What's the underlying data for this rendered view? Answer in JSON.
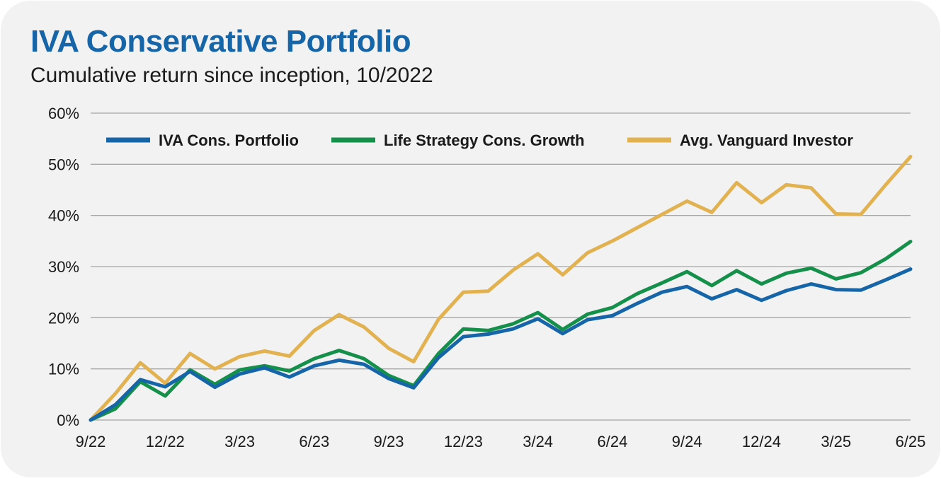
{
  "header": {
    "title": "IVA Conservative Portfolio",
    "subtitle": "Cumulative return since inception, 10/2022"
  },
  "colors": {
    "background": "#f2f2f2",
    "title": "#1565a8",
    "gridline": "#a6a6a6",
    "iva": "#1565a8",
    "life_strategy": "#14904a",
    "avg_vanguard": "#e2b150"
  },
  "chart_data": {
    "type": "line",
    "title": "IVA Conservative Portfolio",
    "subtitle": "Cumulative return since inception, 10/2022",
    "xlabel": "",
    "ylabel": "",
    "ylim": [
      0,
      60
    ],
    "yticks": [
      0,
      10,
      20,
      30,
      40,
      50,
      60
    ],
    "ytick_labels": [
      "0%",
      "10%",
      "20%",
      "30%",
      "40%",
      "50%",
      "60%"
    ],
    "grid": true,
    "legend_position": "top",
    "x": [
      "9/22",
      "10/22",
      "11/22",
      "12/22",
      "1/23",
      "2/23",
      "3/23",
      "4/23",
      "5/23",
      "6/23",
      "7/23",
      "8/23",
      "9/23",
      "10/23",
      "11/23",
      "12/23",
      "1/24",
      "2/24",
      "3/24",
      "4/24",
      "5/24",
      "6/24",
      "7/24",
      "8/24",
      "9/24",
      "10/24",
      "11/24",
      "12/24",
      "1/25",
      "2/25",
      "3/25",
      "4/25",
      "5/25",
      "6/25"
    ],
    "x_tick_labels": [
      {
        "index": 0,
        "label": "9/22"
      },
      {
        "index": 3,
        "label": "12/22"
      },
      {
        "index": 6,
        "label": "3/23"
      },
      {
        "index": 9,
        "label": "6/23"
      },
      {
        "index": 12,
        "label": "9/23"
      },
      {
        "index": 15,
        "label": "12/23"
      },
      {
        "index": 18,
        "label": "3/24"
      },
      {
        "index": 21,
        "label": "6/24"
      },
      {
        "index": 24,
        "label": "9/24"
      },
      {
        "index": 27,
        "label": "12/24"
      },
      {
        "index": 30,
        "label": "3/25"
      },
      {
        "index": 33,
        "label": "6/25"
      }
    ],
    "series": [
      {
        "name": "Avg. Vanguard Investor",
        "key": "avg_vanguard",
        "color": "#e2b150",
        "values": [
          0,
          5.2,
          11.2,
          7.2,
          13.0,
          10.0,
          12.4,
          13.5,
          12.5,
          17.5,
          20.6,
          18.2,
          14.0,
          11.4,
          19.7,
          25.0,
          25.2,
          29.3,
          32.5,
          28.4,
          32.7,
          35.0,
          37.6,
          40.2,
          42.8,
          40.6,
          46.4,
          42.5,
          46.0,
          45.4,
          40.3,
          40.2,
          46.0,
          51.5
        ]
      },
      {
        "name": "Life Strategy Cons. Growth",
        "key": "life_strategy",
        "color": "#14904a",
        "values": [
          0,
          2.2,
          7.5,
          4.7,
          9.8,
          7.0,
          9.8,
          10.6,
          9.6,
          12.0,
          13.6,
          12.0,
          8.7,
          6.7,
          13.0,
          17.8,
          17.5,
          18.8,
          21.0,
          17.7,
          20.7,
          22.0,
          24.7,
          26.8,
          29.0,
          26.3,
          29.2,
          26.6,
          28.7,
          29.7,
          27.6,
          28.8,
          31.5,
          34.9
        ]
      },
      {
        "name": "IVA Cons. Portfolio",
        "key": "iva",
        "color": "#1565a8",
        "values": [
          0,
          3.0,
          7.9,
          6.5,
          9.5,
          6.4,
          9.0,
          10.2,
          8.4,
          10.6,
          11.7,
          10.9,
          8.1,
          6.3,
          12.2,
          16.3,
          16.8,
          17.8,
          19.8,
          16.9,
          19.6,
          20.4,
          22.8,
          25.0,
          26.1,
          23.7,
          25.5,
          23.4,
          25.3,
          26.6,
          25.5,
          25.4,
          27.4,
          29.5
        ]
      }
    ],
    "legend": [
      {
        "label": "IVA Cons. Portfolio",
        "key": "iva",
        "color": "#1565a8"
      },
      {
        "label": "Life Strategy Cons. Growth",
        "key": "life_strategy",
        "color": "#14904a"
      },
      {
        "label": "Avg. Vanguard Investor",
        "key": "avg_vanguard",
        "color": "#e2b150"
      }
    ]
  }
}
